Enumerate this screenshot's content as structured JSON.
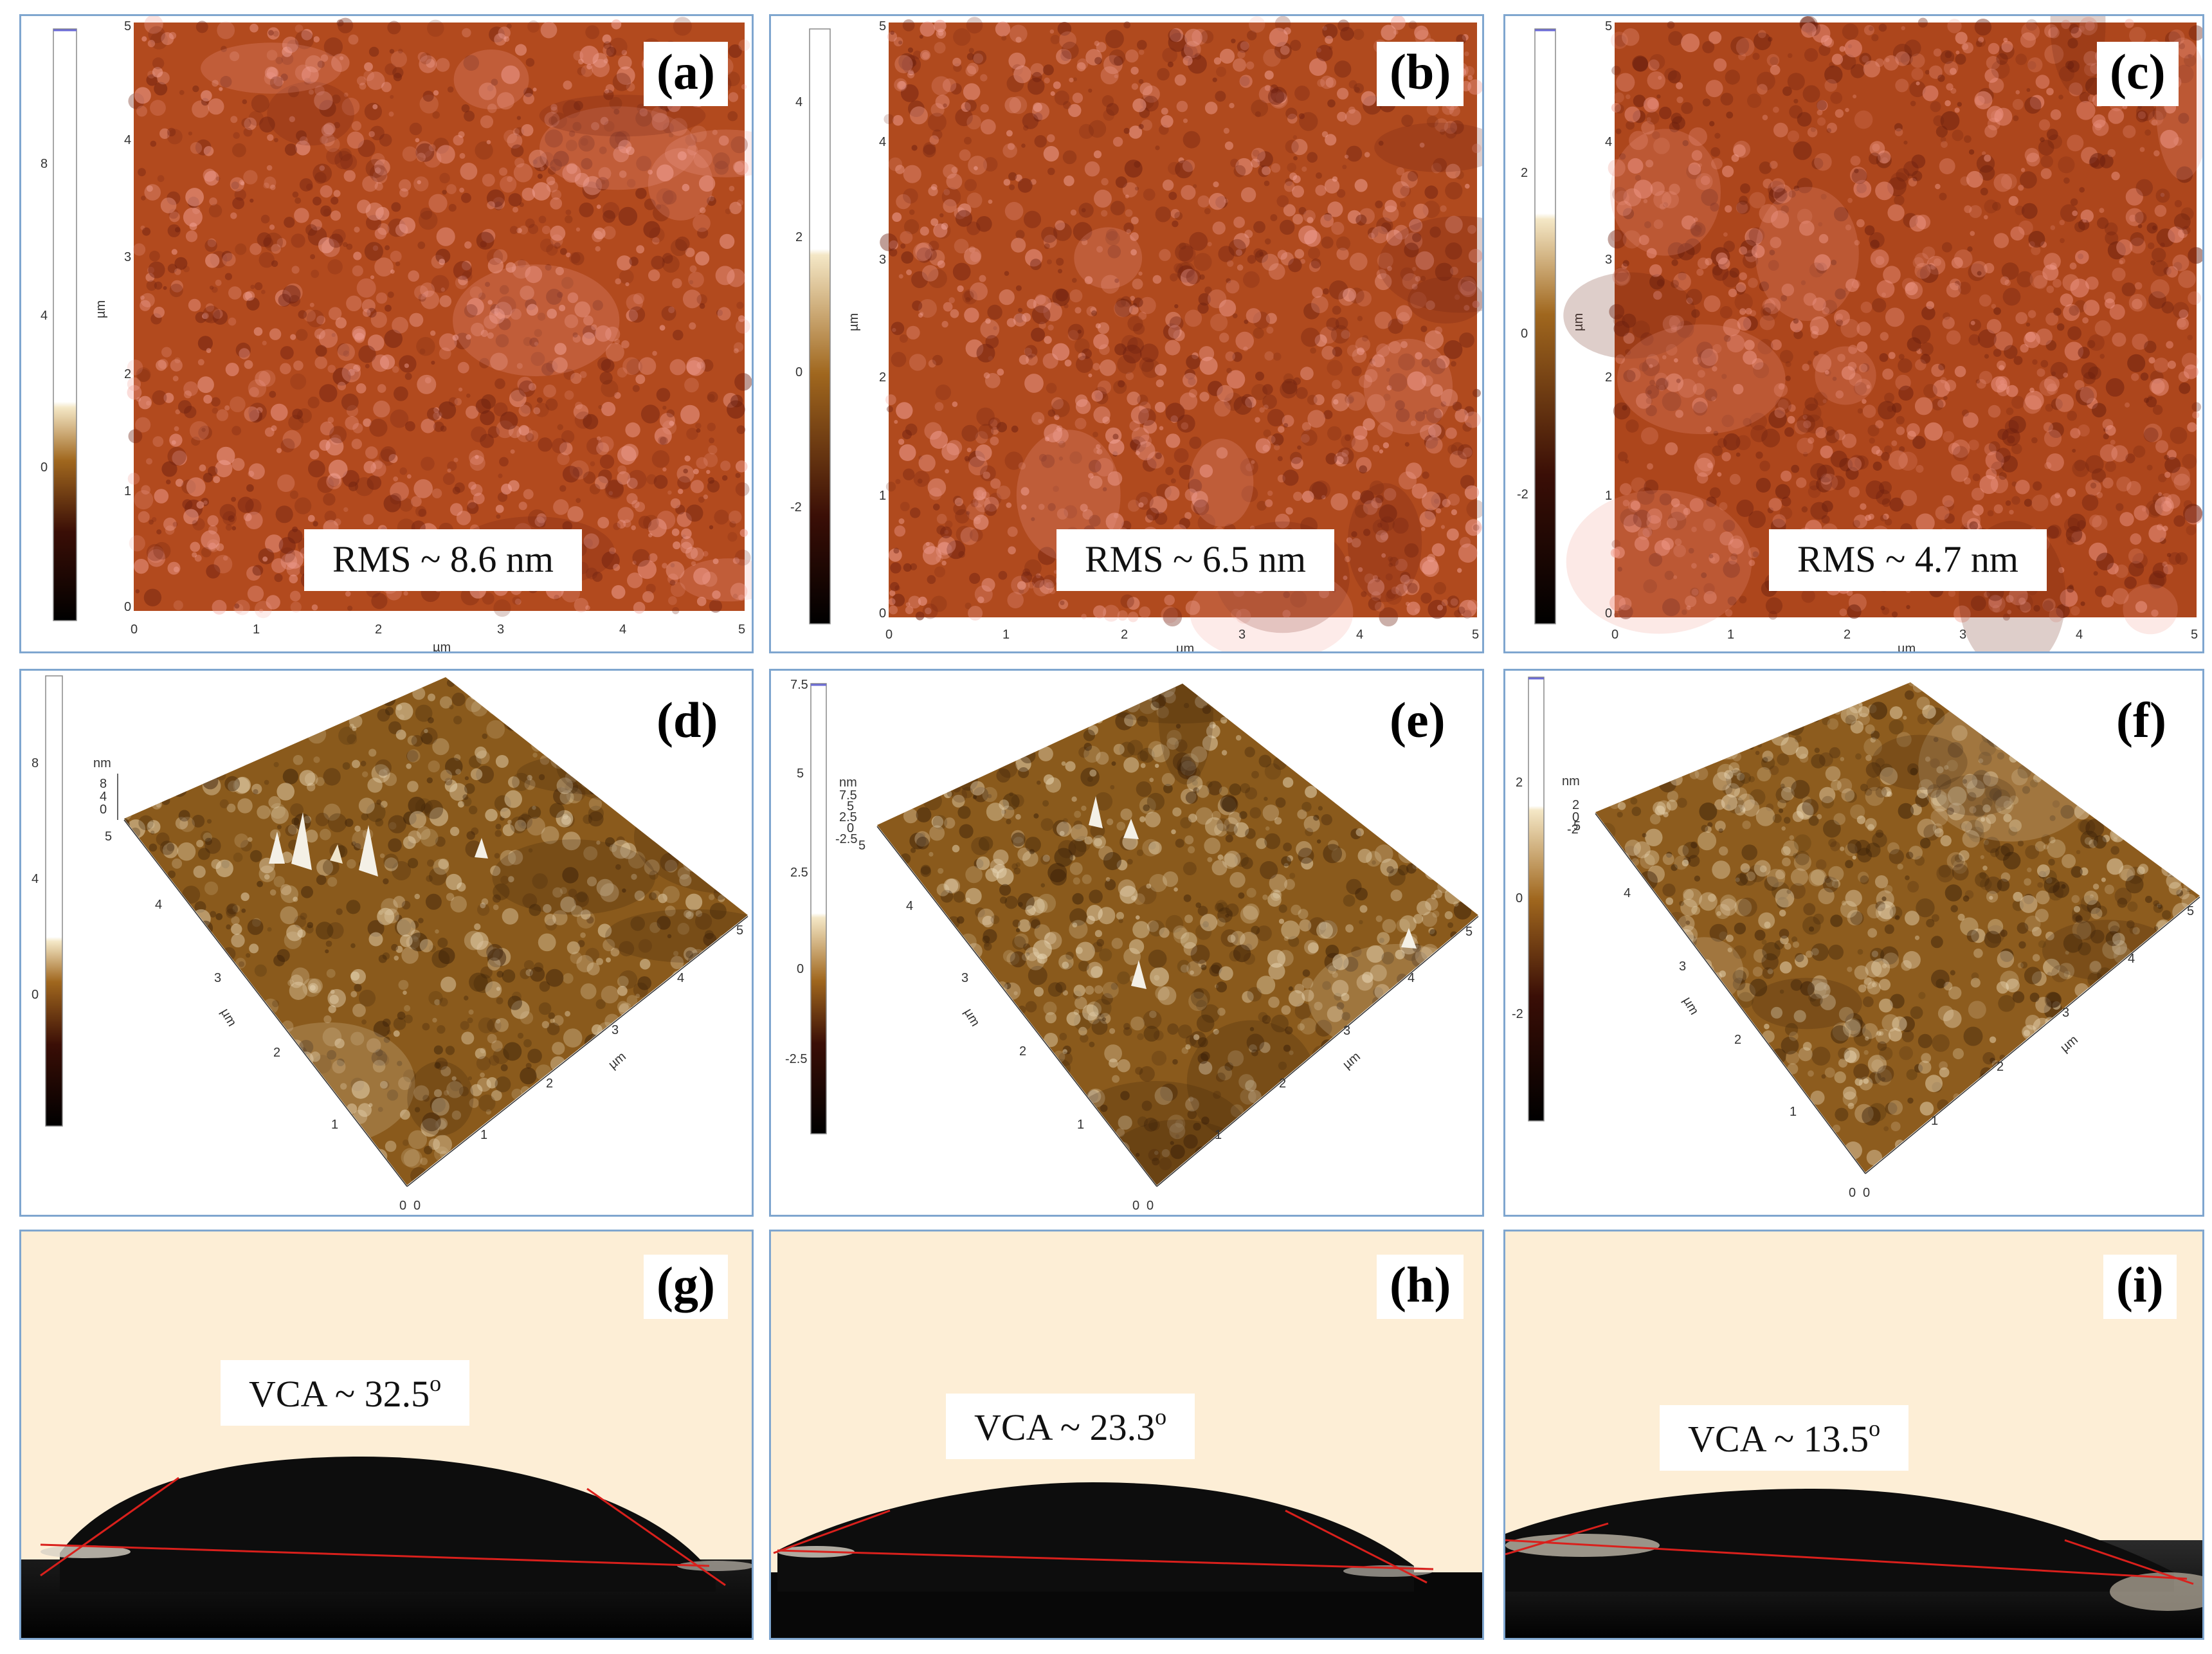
{
  "figure": {
    "rows": [
      {
        "type": "afm-2d",
        "panels": [
          {
            "letter": "(a)",
            "annotation": "RMS ~ 8.6 nm",
            "colorbar_ticks": [
              "8",
              "4",
              "0"
            ],
            "axis_ticks": [
              "0",
              "1",
              "2",
              "3",
              "4",
              "5"
            ],
            "axis_unit": "µm"
          },
          {
            "letter": "(b)",
            "annotation": "RMS ~ 6.5 nm",
            "colorbar_ticks": [
              "4",
              "2",
              "0",
              "-2"
            ],
            "axis_ticks": [
              "0",
              "1",
              "2",
              "3",
              "4",
              "5"
            ],
            "axis_unit": "µm"
          },
          {
            "letter": "(c)",
            "annotation": "RMS ~ 4.7 nm",
            "colorbar_ticks": [
              "2",
              "0",
              "-2"
            ],
            "axis_ticks": [
              "0",
              "1",
              "2",
              "3",
              "4",
              "5"
            ],
            "axis_unit": "µm"
          }
        ]
      },
      {
        "type": "afm-3d",
        "panels": [
          {
            "letter": "(d)",
            "z_ticks": [
              "8",
              "4",
              "0"
            ],
            "z_unit": "nm",
            "colorbar_ticks": [
              "8",
              "4",
              "0"
            ],
            "xy_ticks": [
              "0",
              "1",
              "2",
              "3",
              "4",
              "5"
            ],
            "xy_unit": "µm"
          },
          {
            "letter": "(e)",
            "z_ticks": [
              "7.5",
              "5",
              "2.5",
              "0",
              "-2.5"
            ],
            "z_unit": "nm",
            "colorbar_ticks": [
              "7.5",
              "5",
              "2.5",
              "0",
              "-2.5"
            ],
            "xy_ticks": [
              "0",
              "1",
              "2",
              "3",
              "4",
              "5"
            ],
            "xy_unit": "µm"
          },
          {
            "letter": "(f)",
            "z_ticks": [
              "2",
              "0",
              "-2"
            ],
            "z_unit": "nm",
            "colorbar_ticks": [
              "2",
              "0",
              "-2"
            ],
            "xy_ticks": [
              "0",
              "1",
              "2",
              "3",
              "4",
              "5"
            ],
            "xy_unit": "µm"
          }
        ]
      },
      {
        "type": "contact-angle",
        "panels": [
          {
            "letter": "(g)",
            "annotation": "VCA ~ 32.5",
            "superscript": "o"
          },
          {
            "letter": "(h)",
            "annotation": "VCA ~ 23.3",
            "superscript": "o"
          },
          {
            "letter": "(i)",
            "annotation": "VCA ~ 13.5",
            "superscript": "o"
          }
        ]
      }
    ],
    "colors": {
      "border": "#7fa6cf",
      "afm2d_base": "#b24a1e",
      "afm2d_high": "#f4a49a",
      "afm3d_base": "#8a5a1c",
      "afm3d_high": "#e8d6b4",
      "droplet_bg": "#fdeed6",
      "droplet": "#0d0d0d",
      "tangent": "#d9201c"
    }
  }
}
